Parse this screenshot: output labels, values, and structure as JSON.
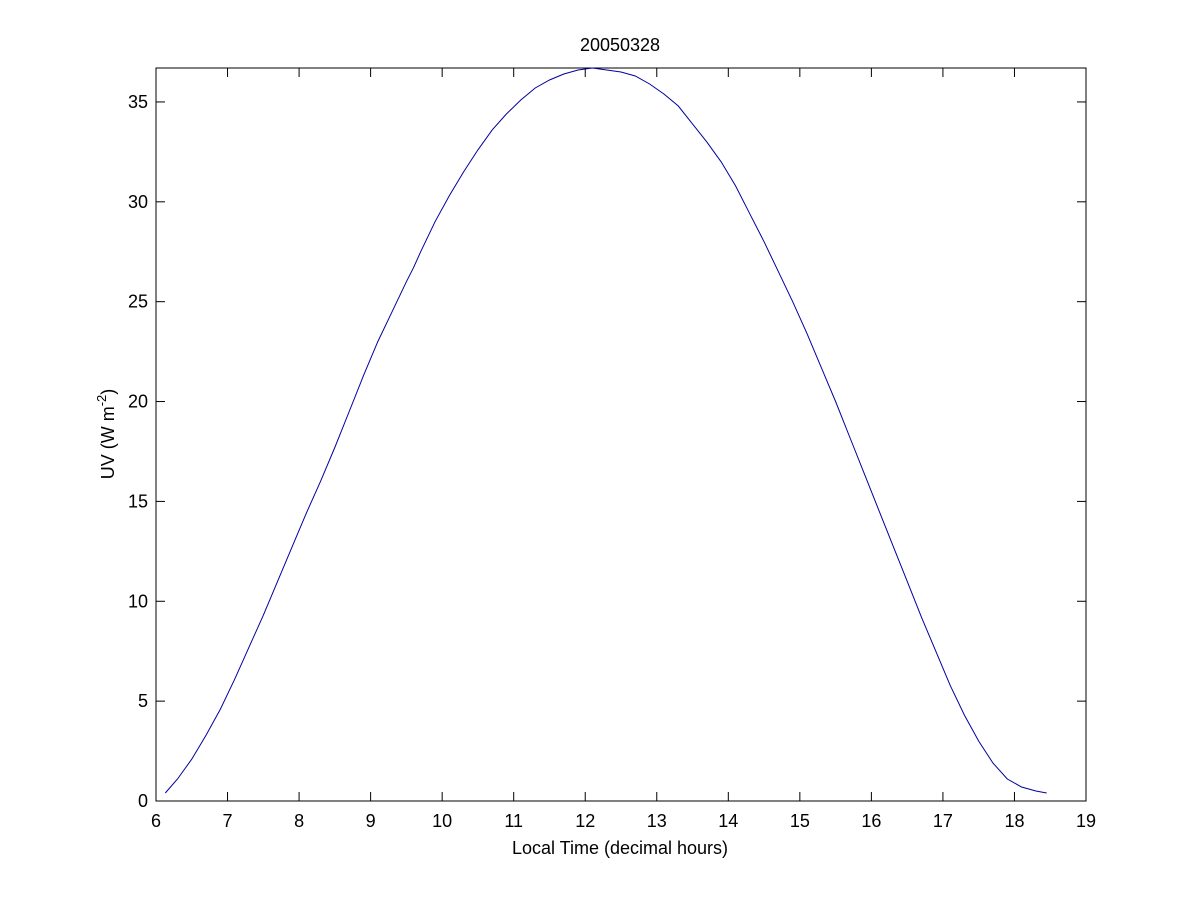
{
  "chart_data": {
    "type": "line",
    "title": "20050328",
    "xlabel": "Local Time (decimal hours)",
    "ylabel": {
      "prefix": "UV (W m",
      "superscript": "-2",
      "suffix": ")"
    },
    "xlim": [
      6,
      19
    ],
    "ylim": [
      0,
      36.7
    ],
    "xticks": [
      "6",
      "7",
      "8",
      "9",
      "10",
      "11",
      "12",
      "13",
      "14",
      "15",
      "16",
      "17",
      "18",
      "19"
    ],
    "yticks": [
      "0",
      "5",
      "10",
      "15",
      "20",
      "25",
      "30",
      "35"
    ],
    "grid": false,
    "line_color": "#0000a0",
    "series": [
      {
        "x": [
          6.13,
          6.3,
          6.5,
          6.7,
          6.9,
          7.1,
          7.3,
          7.5,
          7.7,
          7.9,
          8.1,
          8.3,
          8.5,
          8.7,
          8.9,
          9.1,
          9.3,
          9.5,
          9.6,
          9.7,
          9.9,
          10.1,
          10.3,
          10.5,
          10.7,
          10.9,
          11.1,
          11.3,
          11.5,
          11.7,
          11.9,
          12.1,
          12.3,
          12.5,
          12.7,
          12.9,
          13.1,
          13.3,
          13.5,
          13.7,
          13.9,
          14.1,
          14.3,
          14.5,
          14.7,
          14.9,
          15.1,
          15.3,
          15.5,
          15.7,
          15.9,
          16.1,
          16.3,
          16.5,
          16.7,
          16.9,
          17.1,
          17.3,
          17.5,
          17.7,
          17.9,
          18.1,
          18.3,
          18.45
        ],
        "y": [
          0.4,
          1.1,
          2.1,
          3.3,
          4.6,
          6.1,
          7.7,
          9.3,
          11.0,
          12.7,
          14.4,
          16.0,
          17.7,
          19.5,
          21.3,
          23.0,
          24.5,
          26.0,
          26.7,
          27.5,
          29.0,
          30.3,
          31.5,
          32.6,
          33.6,
          34.4,
          35.1,
          35.7,
          36.1,
          36.4,
          36.6,
          36.7,
          36.6,
          36.5,
          36.3,
          35.9,
          35.4,
          34.8,
          33.9,
          33.0,
          32.0,
          30.8,
          29.4,
          28.0,
          26.5,
          25.0,
          23.4,
          21.7,
          20.0,
          18.2,
          16.4,
          14.6,
          12.8,
          11.0,
          9.2,
          7.5,
          5.8,
          4.3,
          3.0,
          1.9,
          1.1,
          0.7,
          0.5,
          0.4
        ]
      }
    ]
  }
}
